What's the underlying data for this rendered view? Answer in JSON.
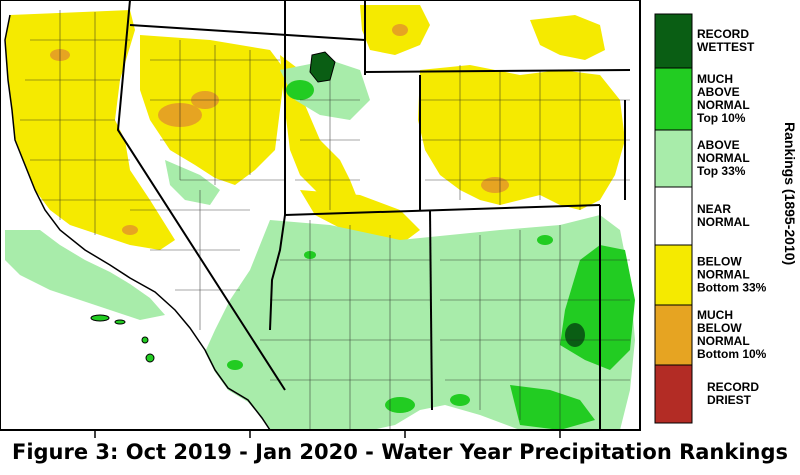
{
  "caption": "Figure 3: Oct 2019 - Jan 2020 - Water Year Precipitation Rankings",
  "legend": {
    "title": "Rankings (1895-2010)",
    "colors": {
      "record_wettest": "#0a5e14",
      "much_above": "#22cc22",
      "above": "#a8ecaa",
      "near": "#ffffff",
      "below": "#f5ea00",
      "much_below": "#e6a422",
      "record_driest": "#b32c25"
    },
    "items": [
      {
        "key": "record_wettest",
        "lines": [
          "RECORD",
          "WETTEST"
        ]
      },
      {
        "key": "much_above",
        "lines": [
          "MUCH",
          "ABOVE",
          "NORMAL",
          "Top 10%"
        ]
      },
      {
        "key": "above",
        "lines": [
          "ABOVE",
          "NORMAL",
          "Top 33%"
        ]
      },
      {
        "key": "near",
        "lines": [
          "NEAR",
          "NORMAL"
        ]
      },
      {
        "key": "below",
        "lines": [
          "BELOW",
          "NORMAL",
          "Bottom 33%"
        ]
      },
      {
        "key": "much_below",
        "lines": [
          "MUCH",
          "BELOW",
          "NORMAL",
          "Bottom 10%"
        ]
      },
      {
        "key": "record_driest",
        "lines": [
          "RECORD",
          "DRIEST"
        ]
      }
    ]
  }
}
